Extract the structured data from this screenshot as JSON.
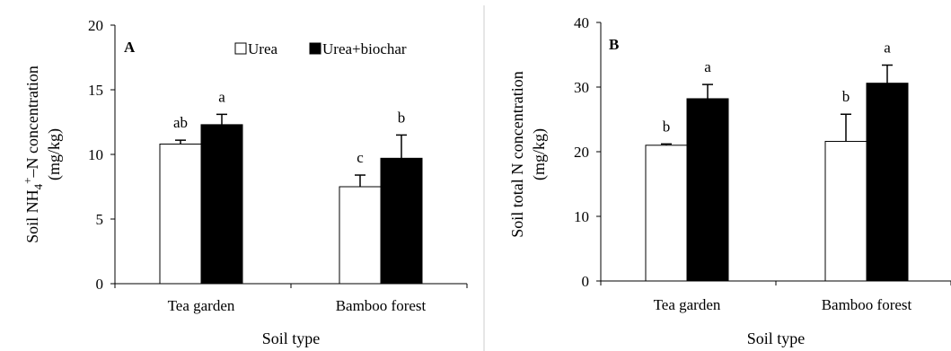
{
  "figure": {
    "divider_color": "#cccccc"
  },
  "chart_data": [
    {
      "type": "bar",
      "panel_label": "A",
      "categories": [
        "Tea garden",
        "Bamboo forest"
      ],
      "series": [
        {
          "name": "Urea",
          "color": "#ffffff",
          "values": [
            10.8,
            7.5
          ],
          "errors": [
            0.3,
            0.9
          ],
          "sig_labels": [
            "ab",
            "c"
          ]
        },
        {
          "name": "Urea+biochar",
          "color": "#000000",
          "values": [
            12.3,
            9.7
          ],
          "errors": [
            0.8,
            1.8
          ],
          "sig_labels": [
            "a",
            "b"
          ]
        }
      ],
      "xlabel": "Soil type",
      "ylabel": {
        "prefix": "Soil NH",
        "sub": "4",
        "sup": "+",
        "suffix": "–N concentration",
        "line2": "(mg/kg)"
      },
      "ylim": [
        0,
        20
      ],
      "yticks": [
        "0",
        "5",
        "10",
        "15",
        "20"
      ],
      "legend": "top-right",
      "grid": false
    },
    {
      "type": "bar",
      "panel_label": "B",
      "categories": [
        "Tea garden",
        "Bamboo forest"
      ],
      "series": [
        {
          "name": "Urea",
          "color": "#ffffff",
          "values": [
            21.0,
            21.6
          ],
          "errors": [
            0.2,
            4.2
          ],
          "sig_labels": [
            "b",
            "b"
          ]
        },
        {
          "name": "Urea+biochar",
          "color": "#000000",
          "values": [
            28.2,
            30.6
          ],
          "errors": [
            2.2,
            2.8
          ],
          "sig_labels": [
            "a",
            "a"
          ]
        }
      ],
      "xlabel": "Soil type",
      "ylabel": {
        "line1": "Soil total N concentration",
        "line2": "(mg/kg)"
      },
      "ylim": [
        0,
        40
      ],
      "yticks": [
        "0",
        "10",
        "20",
        "30",
        "40"
      ],
      "legend": "none",
      "grid": false
    }
  ]
}
